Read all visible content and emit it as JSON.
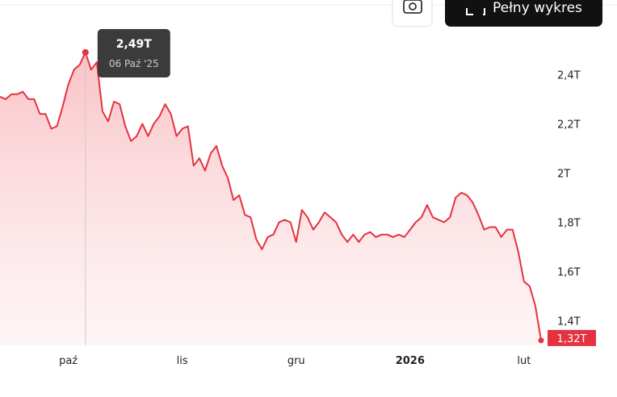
{
  "chart_data": {
    "type": "line",
    "button": "Pełny wykres",
    "categories": [
      null,
      null,
      null,
      null,
      null,
      null,
      null,
      null,
      null,
      null,
      null,
      null,
      "paź",
      null,
      null,
      null,
      null,
      null,
      null,
      null,
      null,
      null,
      null,
      null,
      null,
      null,
      null,
      null,
      null,
      null,
      null,
      null,
      "lis",
      null,
      null,
      null,
      null,
      null,
      null,
      null,
      null,
      null,
      null,
      null,
      null,
      null,
      null,
      null,
      null,
      null,
      null,
      null,
      "gru",
      null,
      null,
      null,
      null,
      null,
      null,
      null,
      null,
      null,
      null,
      null,
      null,
      null,
      null,
      null,
      null,
      null,
      null,
      null,
      "2026",
      null,
      null,
      null,
      null,
      null,
      null,
      null,
      null,
      null,
      null,
      null,
      null,
      null,
      null,
      null,
      null,
      null,
      null,
      null,
      "lut",
      null,
      null,
      null
    ],
    "series": [
      {
        "color": "#e5323f",
        "values": [
          2.31,
          2.3,
          2.32,
          2.32,
          2.33,
          2.3,
          2.3,
          2.24,
          2.24,
          2.18,
          2.19,
          2.27,
          2.36,
          2.42,
          2.44,
          2.49,
          2.42,
          2.45,
          2.25,
          2.21,
          2.29,
          2.28,
          2.19,
          2.13,
          2.15,
          2.2,
          2.15,
          2.2,
          2.23,
          2.28,
          2.24,
          2.15,
          2.18,
          2.19,
          2.03,
          2.06,
          2.01,
          2.08,
          2.11,
          2.03,
          1.98,
          1.89,
          1.91,
          1.83,
          1.82,
          1.73,
          1.69,
          1.74,
          1.75,
          1.8,
          1.81,
          1.8,
          1.72,
          1.85,
          1.82,
          1.77,
          1.8,
          1.84,
          1.82,
          1.8,
          1.75,
          1.72,
          1.75,
          1.72,
          1.75,
          1.76,
          1.74,
          1.75,
          1.75,
          1.74,
          1.75,
          1.74,
          1.77,
          1.8,
          1.82,
          1.87,
          1.82,
          1.81,
          1.8,
          1.82,
          1.9,
          1.92,
          1.91,
          1.88,
          1.83,
          1.77,
          1.78,
          1.78,
          1.74,
          1.77,
          1.77,
          1.68,
          1.56,
          1.54,
          1.46,
          1.32
        ]
      }
    ],
    "ylim": [
      1.3,
      2.67
    ],
    "yticks": [
      {
        "value": 1.4,
        "label": "1,4T"
      },
      {
        "value": 1.6,
        "label": "1,6T"
      },
      {
        "value": 1.8,
        "label": "1,8T"
      },
      {
        "value": 2,
        "label": "2T"
      },
      {
        "value": 2.2,
        "label": "2,2T"
      },
      {
        "value": 2.4,
        "label": "2,4T"
      }
    ],
    "grid": false,
    "tooltip": {
      "value": 2.49,
      "label": "2,49T",
      "date": "06 Paź '25"
    },
    "last_value": {
      "value": 1.32,
      "label": "1,32T"
    }
  }
}
